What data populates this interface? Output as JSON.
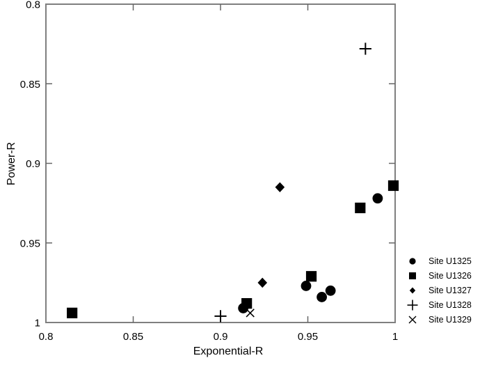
{
  "figure": {
    "background": "#ffffff",
    "axis_box_color": "#7f7f7f",
    "tick_color": "#666666",
    "text_color": "#000000",
    "marker_color": "#000000"
  },
  "chart_data": {
    "type": "scatter",
    "title": "",
    "xlabel": "Exponential-R",
    "ylabel": "Power-R",
    "grid": false,
    "legend_position": "right-outside",
    "x_axis": {
      "min": 0.8,
      "max": 1.0,
      "tick_values": [
        0.8,
        0.85,
        0.9,
        0.95,
        1
      ],
      "tick_labels": [
        "0.8",
        "0.85",
        "0.9",
        "0.95",
        "1"
      ]
    },
    "y_axis": {
      "min": 0.8,
      "max": 1.0,
      "inverted": true,
      "tick_values": [
        0.8,
        0.85,
        0.9,
        0.95,
        1
      ],
      "tick_labels": [
        "0.8",
        "0.85",
        "0.9",
        "0.95",
        "1"
      ]
    },
    "series": [
      {
        "name": "Site U1325",
        "marker": "circle",
        "color": "#000000",
        "points": [
          [
            0.913,
            0.991
          ],
          [
            0.949,
            0.977
          ],
          [
            0.958,
            0.984
          ],
          [
            0.963,
            0.98
          ],
          [
            0.99,
            0.922
          ]
        ]
      },
      {
        "name": "Site U1326",
        "marker": "square",
        "color": "#000000",
        "points": [
          [
            0.815,
            0.994
          ],
          [
            0.915,
            0.988
          ],
          [
            0.952,
            0.971
          ],
          [
            0.98,
            0.928
          ],
          [
            0.999,
            0.914
          ]
        ]
      },
      {
        "name": "Site U1327",
        "marker": "diamond",
        "color": "#000000",
        "points": [
          [
            0.924,
            0.975
          ],
          [
            0.934,
            0.915
          ]
        ]
      },
      {
        "name": "Site U1328",
        "marker": "plus",
        "color": "#000000",
        "points": [
          [
            0.9,
            0.996
          ],
          [
            0.983,
            0.828
          ]
        ]
      },
      {
        "name": "Site U1329",
        "marker": "x",
        "color": "#000000",
        "points": [
          [
            0.917,
            0.994
          ]
        ]
      }
    ]
  }
}
